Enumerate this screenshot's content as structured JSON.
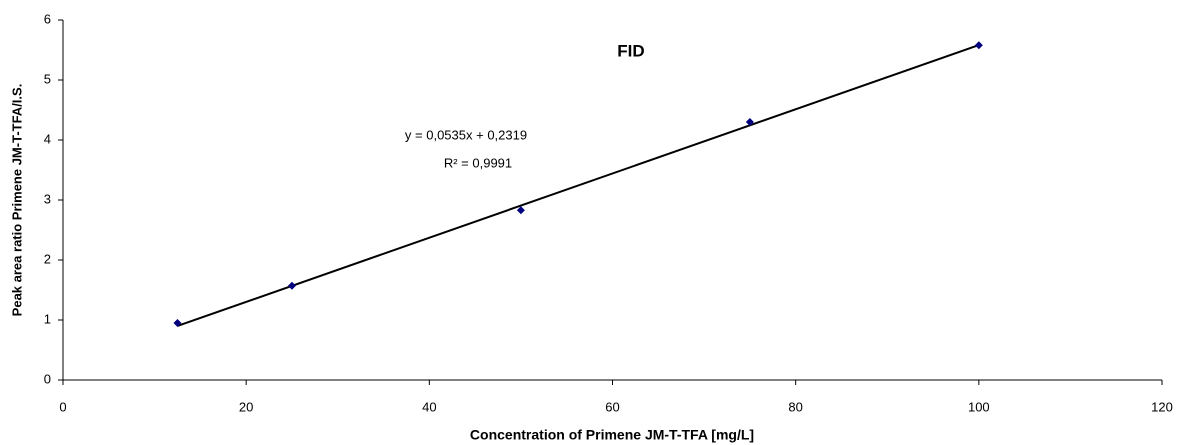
{
  "chart_data": {
    "type": "scatter",
    "title": "FID",
    "x_label": "Concentration of Primene JM-T-TFA [mg/L]",
    "y_label": "Peak area ratio Primene JM-T-TFA/I.S.",
    "x": [
      12.5,
      25,
      50,
      75,
      100
    ],
    "series": [
      {
        "name": "FID",
        "color": "#000080",
        "values": [
          0.95,
          1.57,
          2.83,
          4.3,
          5.58
        ]
      }
    ],
    "trendline": {
      "slope": 0.0535,
      "intercept": 0.2319,
      "color": "#000000",
      "equation": "y = 0,0535x + 0,2319",
      "r2": "R² = 0,9991"
    },
    "xlim": [
      0,
      120
    ],
    "xticks": [
      0,
      20,
      40,
      60,
      80,
      100,
      120
    ],
    "ylim": [
      0,
      6
    ],
    "yticks": [
      0,
      1,
      2,
      3,
      4,
      5,
      6
    ],
    "grid": false
  }
}
